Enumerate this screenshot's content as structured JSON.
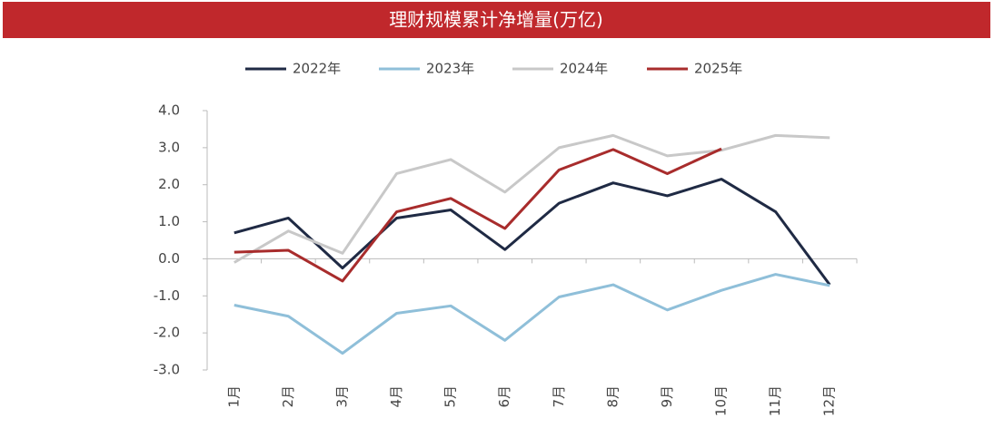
{
  "chart_data": {
    "type": "line",
    "title": "理财规模累计净增量(万亿)",
    "categories": [
      "1月",
      "2月",
      "3月",
      "4月",
      "5月",
      "6月",
      "7月",
      "8月",
      "9月",
      "10月",
      "11月",
      "12月"
    ],
    "series": [
      {
        "name": "2022年",
        "color": "#1f2a44",
        "values": [
          0.7,
          1.1,
          -0.25,
          1.1,
          1.32,
          0.25,
          1.5,
          2.05,
          1.7,
          2.15,
          1.27,
          -0.7
        ]
      },
      {
        "name": "2023年",
        "color": "#8fbfd9",
        "values": [
          -1.25,
          -1.55,
          -2.55,
          -1.47,
          -1.27,
          -2.2,
          -1.03,
          -0.7,
          -1.38,
          -0.85,
          -0.42,
          -0.72
        ]
      },
      {
        "name": "2024年",
        "color": "#c8c8c8",
        "values": [
          -0.1,
          0.75,
          0.15,
          2.3,
          2.68,
          1.8,
          3.0,
          3.33,
          2.78,
          2.93,
          3.33,
          3.27
        ]
      },
      {
        "name": "2025年",
        "color": "#a82c2c",
        "values": [
          0.18,
          0.23,
          -0.6,
          1.27,
          1.63,
          0.82,
          2.4,
          2.95,
          2.3,
          2.97,
          null,
          null
        ]
      }
    ],
    "ylim": [
      -3,
      4
    ],
    "yticks": [
      {
        "value": -3,
        "label": "-3.0"
      },
      {
        "value": -2,
        "label": "-2.0"
      },
      {
        "value": -1,
        "label": "-1.0"
      },
      {
        "value": 0,
        "label": "0.0"
      },
      {
        "value": 1,
        "label": "1.0"
      },
      {
        "value": 2,
        "label": "2.0"
      },
      {
        "value": 3,
        "label": "3.0"
      },
      {
        "value": 4,
        "label": "4.0"
      }
    ],
    "grid": false,
    "legend": "top"
  }
}
